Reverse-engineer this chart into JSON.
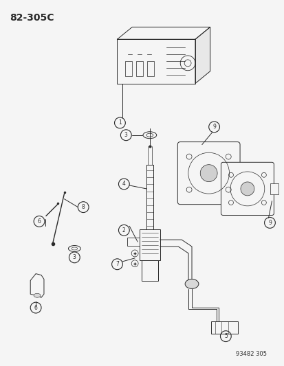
{
  "title_code": "82-305C",
  "catalog_number": "93482 305",
  "bg": "#f5f5f5",
  "lc": "#2a2a2a",
  "fig_width": 4.14,
  "fig_height": 5.33,
  "dpi": 100
}
